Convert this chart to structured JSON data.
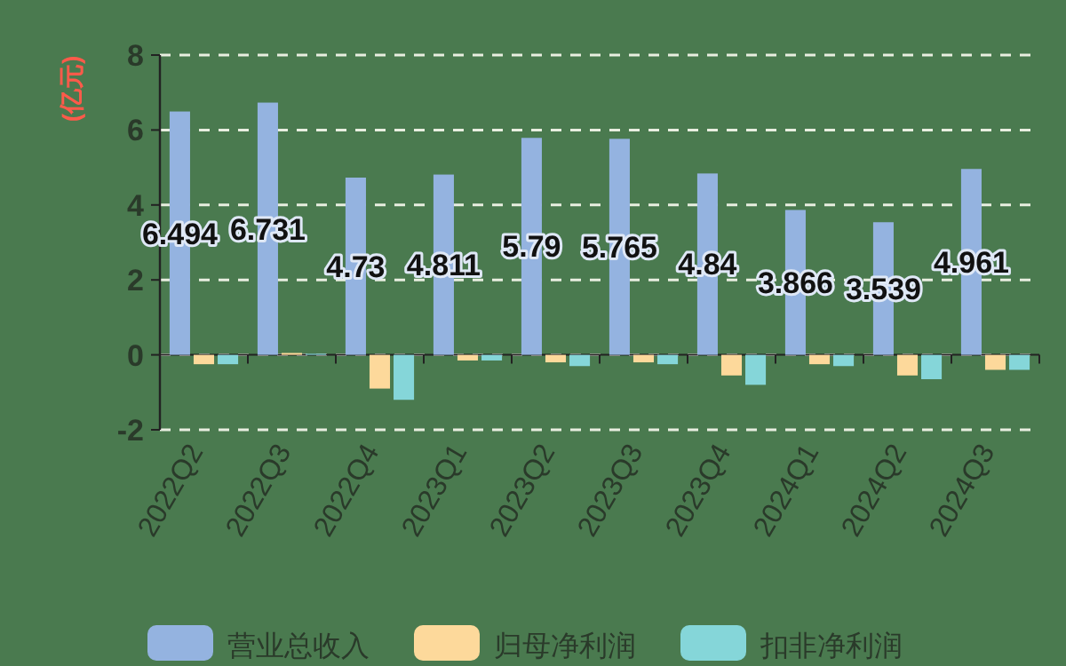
{
  "chart_data": {
    "type": "bar",
    "ylabel": "(亿元)",
    "categories": [
      "2022Q2",
      "2022Q3",
      "2022Q4",
      "2023Q1",
      "2023Q2",
      "2023Q3",
      "2023Q4",
      "2024Q1",
      "2024Q2",
      "2024Q3"
    ],
    "series": [
      {
        "name": "营业总收入",
        "color": "#94b3e0",
        "values": [
          6.494,
          6.731,
          4.73,
          4.811,
          5.79,
          5.765,
          4.84,
          3.866,
          3.539,
          4.961
        ],
        "value_labels": [
          "6.494",
          "6.731",
          "4.73",
          "4.811",
          "5.79",
          "5.765",
          "4.84",
          "3.866",
          "3.539",
          "4.961"
        ]
      },
      {
        "name": "归母净利润",
        "color": "#fdd99b",
        "values": [
          -0.25,
          0.05,
          -0.9,
          -0.15,
          -0.2,
          -0.2,
          -0.55,
          -0.25,
          -0.55,
          -0.4
        ]
      },
      {
        "name": "扣非净利润",
        "color": "#85d6d9",
        "values": [
          -0.25,
          0.03,
          -1.2,
          -0.15,
          -0.3,
          -0.25,
          -0.8,
          -0.3,
          -0.65,
          -0.4
        ]
      }
    ],
    "ylim": [
      -2,
      8
    ],
    "yticks": [
      -2,
      0,
      2,
      4,
      6,
      8
    ],
    "grid": "y",
    "legend": "bottom"
  }
}
